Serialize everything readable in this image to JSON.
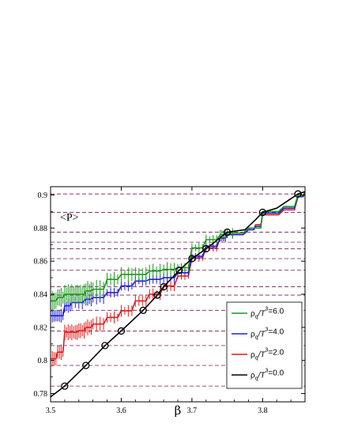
{
  "chart_data": {
    "type": "line",
    "title": "",
    "annotation": "<P>",
    "xlabel": "β",
    "ylabel": "",
    "xlim": [
      3.5,
      3.86
    ],
    "ylim": [
      0.775,
      0.905
    ],
    "xticks": [
      "3.5",
      "3.6",
      "3.7",
      "3.8"
    ],
    "xtick_values": [
      3.5,
      3.6,
      3.7,
      3.8
    ],
    "yticks": [
      "0.78",
      "0.8",
      "0.82",
      "0.84",
      "0.86",
      "0.88",
      "0.9"
    ],
    "ytick_values": [
      0.78,
      0.8,
      0.82,
      0.84,
      0.86,
      0.88,
      0.9
    ],
    "reference_lines": [
      0.9006,
      0.8895,
      0.8775,
      0.8715,
      0.8675,
      0.8615,
      0.8545,
      0.8445,
      0.8395,
      0.8303,
      0.8178,
      0.809,
      0.797,
      0.7845
    ],
    "grid": false,
    "legend_position": "bottom-right",
    "series": [
      {
        "name": "ρ_q/T³=6.0",
        "legend_label": {
          "rho": "ρ",
          "sub": "q",
          "slash": "/T",
          "sup": "3",
          "eq": "=6.0"
        },
        "color": "#1a9a1a",
        "error_bars": true,
        "points": [
          [
            3.5,
            0.836
          ],
          [
            3.51,
            0.838
          ],
          [
            3.52,
            0.84
          ],
          [
            3.53,
            0.84
          ],
          [
            3.54,
            0.84
          ],
          [
            3.55,
            0.842
          ],
          [
            3.56,
            0.843
          ],
          [
            3.58,
            0.849
          ],
          [
            3.6,
            0.852
          ],
          [
            3.62,
            0.852
          ],
          [
            3.64,
            0.854
          ],
          [
            3.66,
            0.855
          ],
          [
            3.68,
            0.856
          ],
          [
            3.7,
            0.868
          ],
          [
            3.72,
            0.873
          ],
          [
            3.74,
            0.876
          ],
          [
            3.75,
            0.877
          ],
          [
            3.78,
            0.88
          ],
          [
            3.79,
            0.88
          ],
          [
            3.8,
            0.89
          ],
          [
            3.83,
            0.893
          ],
          [
            3.85,
            0.9
          ],
          [
            3.86,
            0.902
          ]
        ]
      },
      {
        "name": "ρ_q/T³=4.0",
        "legend_label": {
          "rho": "ρ",
          "sub": "q",
          "slash": "/T",
          "sup": "3",
          "eq": "=4.0"
        },
        "color": "#1f1fdd",
        "error_bars": true,
        "points": [
          [
            3.5,
            0.827
          ],
          [
            3.51,
            0.827
          ],
          [
            3.52,
            0.833
          ],
          [
            3.53,
            0.835
          ],
          [
            3.55,
            0.837
          ],
          [
            3.56,
            0.838
          ],
          [
            3.58,
            0.841
          ],
          [
            3.6,
            0.845
          ],
          [
            3.62,
            0.848
          ],
          [
            3.64,
            0.849
          ],
          [
            3.66,
            0.85
          ],
          [
            3.68,
            0.853
          ],
          [
            3.7,
            0.863
          ],
          [
            3.72,
            0.869
          ],
          [
            3.74,
            0.874
          ],
          [
            3.75,
            0.876
          ],
          [
            3.78,
            0.879
          ],
          [
            3.79,
            0.881
          ],
          [
            3.8,
            0.889
          ],
          [
            3.83,
            0.892
          ],
          [
            3.85,
            0.899
          ],
          [
            3.86,
            0.902
          ]
        ]
      },
      {
        "name": "ρ_q/T³=2.0",
        "legend_label": {
          "rho": "ρ",
          "sub": "q",
          "slash": "/T",
          "sup": "3",
          "eq": "=2.0"
        },
        "color": "#e01c1c",
        "error_bars": true,
        "points": [
          [
            3.5,
            0.801
          ],
          [
            3.51,
            0.805
          ],
          [
            3.52,
            0.817
          ],
          [
            3.53,
            0.817
          ],
          [
            3.54,
            0.818
          ],
          [
            3.55,
            0.82
          ],
          [
            3.56,
            0.822
          ],
          [
            3.58,
            0.826
          ],
          [
            3.6,
            0.83
          ],
          [
            3.62,
            0.836
          ],
          [
            3.64,
            0.84
          ],
          [
            3.66,
            0.845
          ],
          [
            3.68,
            0.851
          ],
          [
            3.7,
            0.862
          ],
          [
            3.72,
            0.868
          ],
          [
            3.74,
            0.874
          ],
          [
            3.75,
            0.876
          ],
          [
            3.78,
            0.879
          ],
          [
            3.79,
            0.882
          ],
          [
            3.8,
            0.888
          ],
          [
            3.83,
            0.891
          ],
          [
            3.85,
            0.899
          ],
          [
            3.86,
            0.902
          ]
        ]
      },
      {
        "name": "ρ_q/T³=0.0",
        "legend_label": {
          "rho": "ρ",
          "sub": "q",
          "slash": "/T",
          "sup": "3",
          "eq": "=0.0"
        },
        "color": "#000000",
        "error_bars": false,
        "points": [
          [
            3.5,
            0.778
          ],
          [
            3.52,
            0.7845
          ],
          [
            3.55,
            0.797
          ],
          [
            3.577,
            0.809
          ],
          [
            3.6,
            0.8178
          ],
          [
            3.631,
            0.8303
          ],
          [
            3.651,
            0.8395
          ],
          [
            3.66,
            0.8445
          ],
          [
            3.682,
            0.8545
          ],
          [
            3.7,
            0.8615
          ],
          [
            3.72,
            0.8675
          ],
          [
            3.75,
            0.8775
          ],
          [
            3.775,
            0.879
          ],
          [
            3.79,
            0.885
          ],
          [
            3.8,
            0.8895
          ],
          [
            3.82,
            0.892
          ],
          [
            3.85,
            0.9006
          ],
          [
            3.86,
            0.902
          ]
        ],
        "markers": [
          [
            3.52,
            0.7845
          ],
          [
            3.55,
            0.797
          ],
          [
            3.577,
            0.809
          ],
          [
            3.6,
            0.8178
          ],
          [
            3.631,
            0.8303
          ],
          [
            3.651,
            0.8395
          ],
          [
            3.66,
            0.8445
          ],
          [
            3.682,
            0.8545
          ],
          [
            3.7,
            0.8615
          ],
          [
            3.72,
            0.8675
          ],
          [
            3.75,
            0.8775
          ],
          [
            3.8,
            0.8895
          ],
          [
            3.85,
            0.9006
          ]
        ]
      }
    ]
  }
}
